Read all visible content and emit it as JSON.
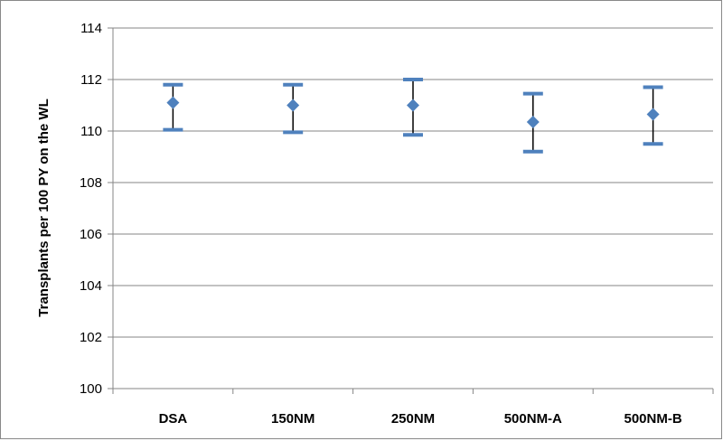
{
  "chart_data": {
    "type": "scatter",
    "title": "",
    "xlabel": "",
    "ylabel": "Transplants per 100 PY on the WL",
    "categories": [
      "DSA",
      "150NM",
      "250NM",
      "500NM-A",
      "500NM-B"
    ],
    "series": [
      {
        "values": [
          111.1,
          111.0,
          111.0,
          110.35,
          110.65
        ],
        "error_low": [
          110.05,
          109.95,
          109.85,
          109.2,
          109.5
        ],
        "error_high": [
          111.8,
          111.8,
          112.0,
          111.45,
          111.7
        ]
      }
    ],
    "ylim": [
      100,
      114
    ],
    "yticks": [
      "100",
      "102",
      "104",
      "106",
      "108",
      "110",
      "112",
      "114"
    ],
    "grid": true,
    "legend": "none",
    "colors": {
      "marker": "#4F81BD",
      "error_cap": "#4F81BD",
      "error_line": "#000000",
      "gridline": "#868686",
      "axis": "#868686"
    }
  }
}
